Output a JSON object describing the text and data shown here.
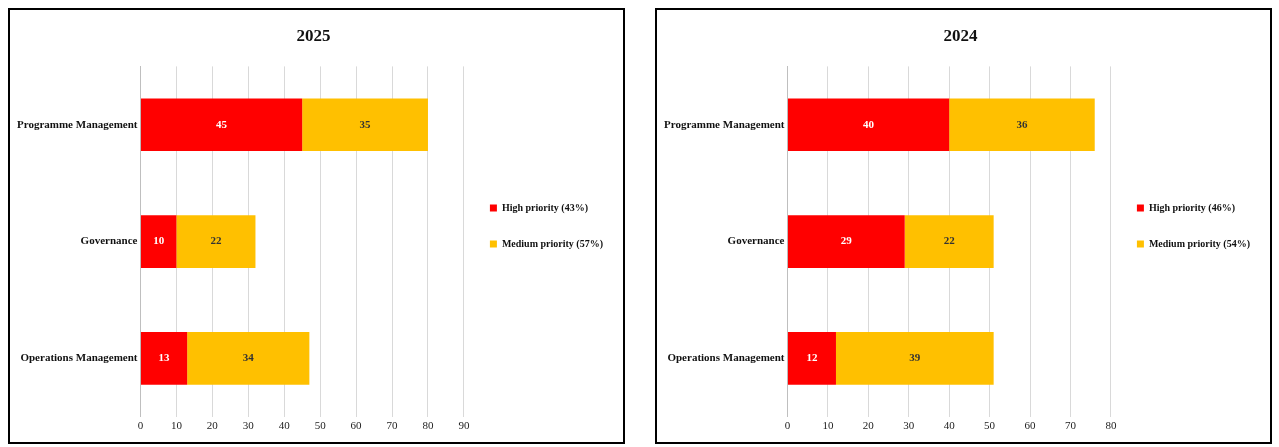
{
  "chart_data": [
    {
      "type": "bar",
      "title": "2025",
      "orientation": "horizontal",
      "stacked": true,
      "categories": [
        "Programme Management",
        "Governance",
        "Operations Management"
      ],
      "series": [
        {
          "name": "High priority (43%)",
          "color": "#ff0000",
          "values": [
            45,
            10,
            13
          ]
        },
        {
          "name": "Medium priority (57%)",
          "color": "#ffc000",
          "values": [
            35,
            22,
            34
          ]
        }
      ],
      "xlim": [
        0,
        90
      ],
      "xticks": [
        0,
        10,
        20,
        30,
        40,
        50,
        60,
        70,
        80,
        90
      ],
      "grid": "x",
      "legend": "right",
      "data_labels": true
    },
    {
      "type": "bar",
      "title": "2024",
      "orientation": "horizontal",
      "stacked": true,
      "categories": [
        "Programme Management",
        "Governance",
        "Operations Management"
      ],
      "series": [
        {
          "name": "High priority (46%)",
          "color": "#ff0000",
          "values": [
            40,
            29,
            12
          ]
        },
        {
          "name": "Medium priority (54%)",
          "color": "#ffc000",
          "values": [
            36,
            22,
            39
          ]
        }
      ],
      "xlim": [
        0,
        80
      ],
      "xticks": [
        0,
        10,
        20,
        30,
        40,
        50,
        60,
        70,
        80
      ],
      "grid": "x",
      "legend": "right",
      "data_labels": true
    }
  ]
}
